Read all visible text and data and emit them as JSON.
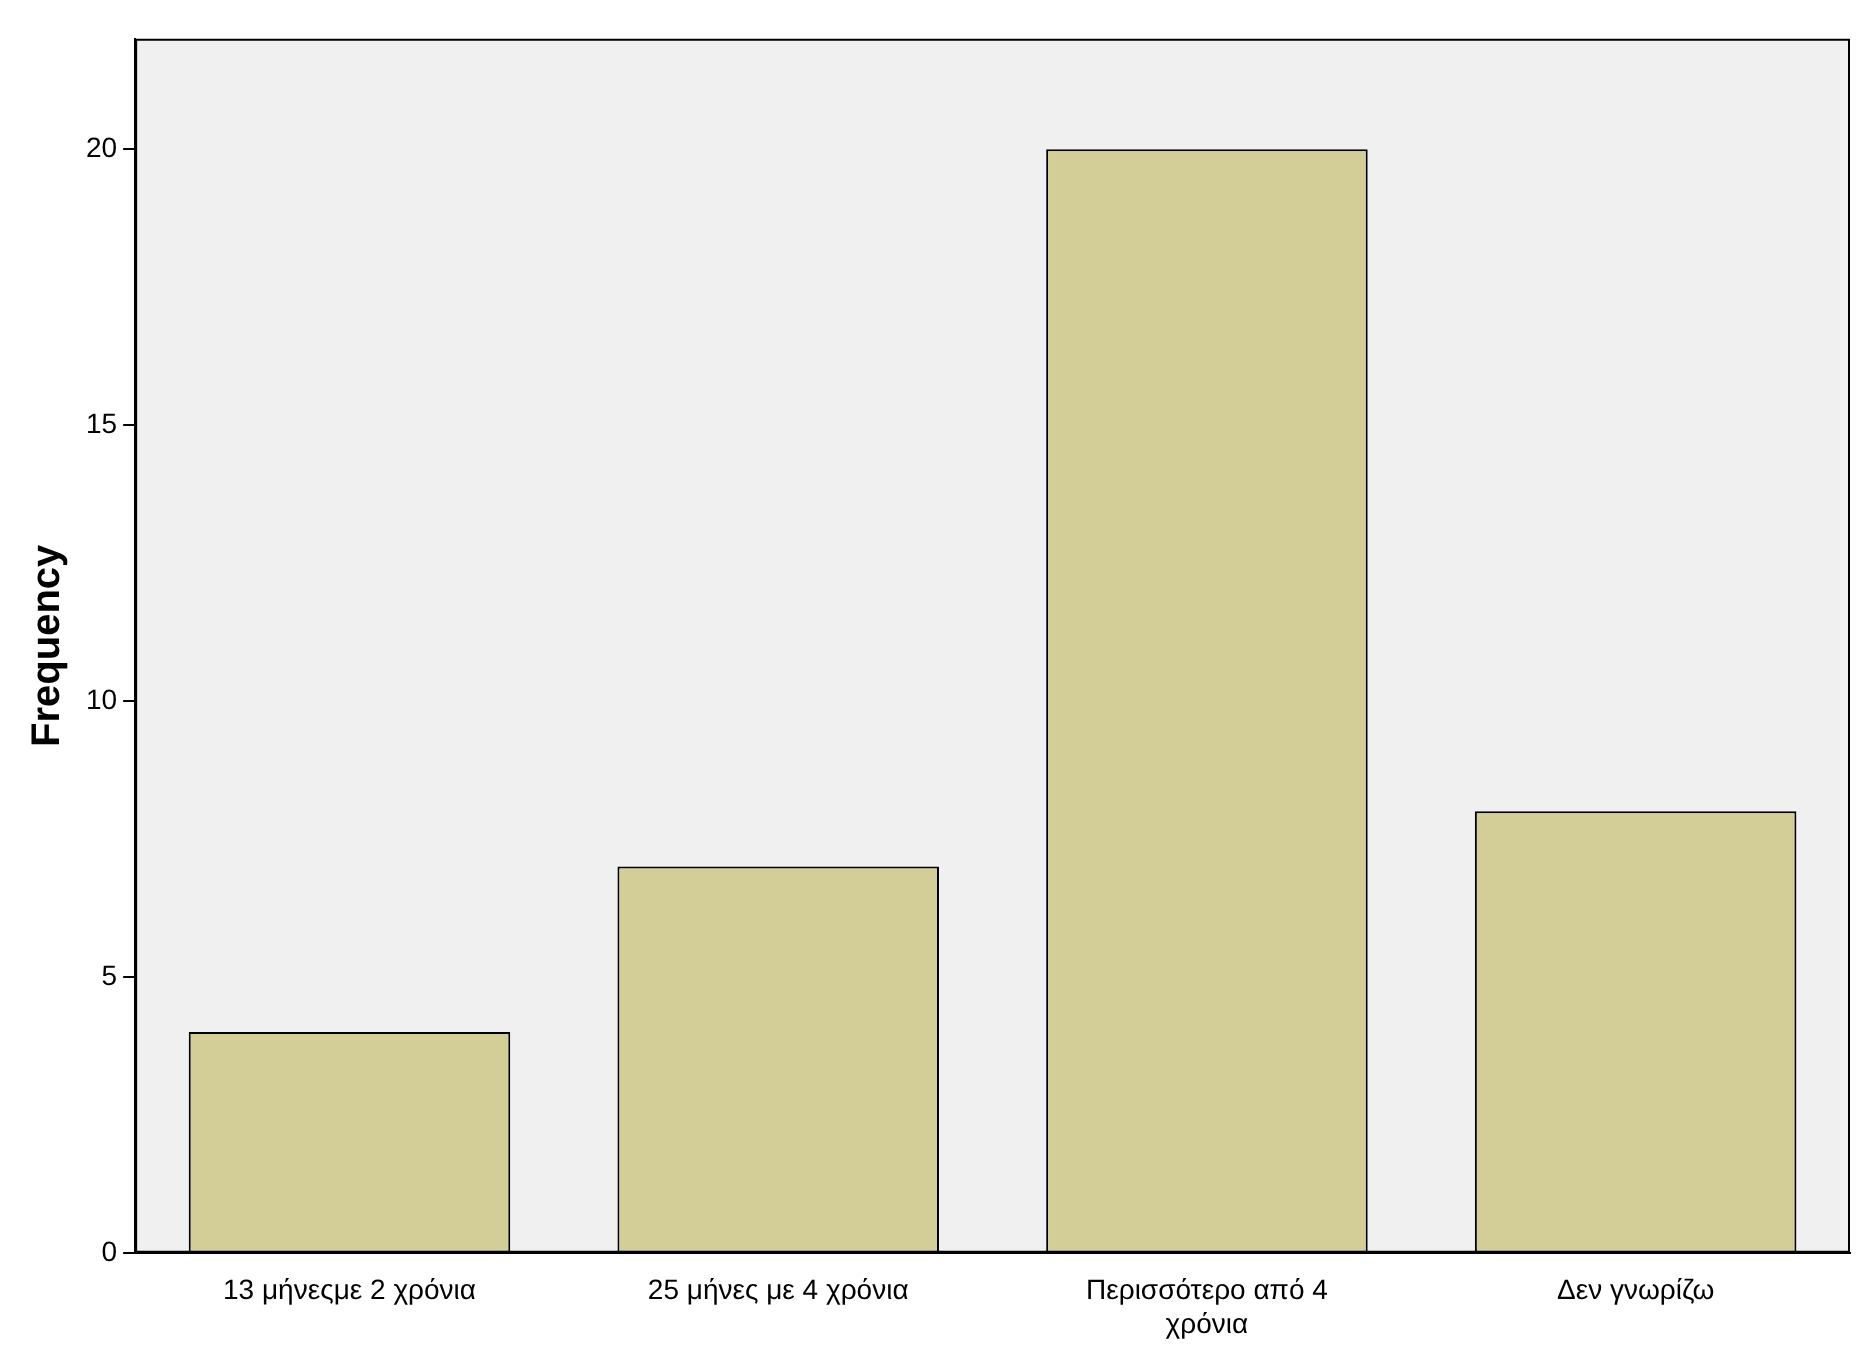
{
  "chart_data": {
    "type": "bar",
    "ylabel": "Frequency",
    "categories": [
      "13 μήνεςμε 2 χρόνια",
      "25 μήνες με 4 χρόνια",
      "Περισσότερο από 4 χρόνια",
      "Δεν γνωρίζω"
    ],
    "values": [
      4,
      7,
      20,
      8
    ],
    "color": "#d3ce97",
    "ylim": [
      0,
      22
    ],
    "yticks": [
      0,
      5,
      10,
      15,
      20
    ],
    "grid": false
  }
}
